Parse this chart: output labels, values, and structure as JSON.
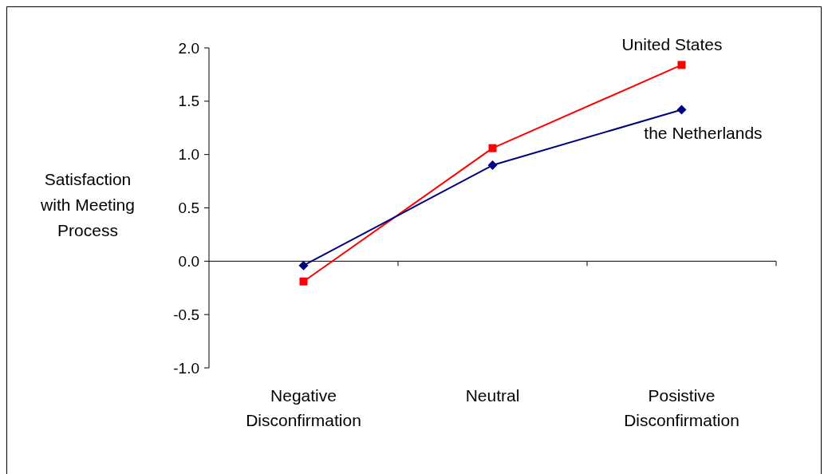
{
  "chart_data": {
    "type": "line",
    "ylabel": "Satisfaction with Meeting Process",
    "categories": [
      "Negative Disconfirmation",
      "Neutral",
      "Posistive Disconfirmation"
    ],
    "series": [
      {
        "name": "United States",
        "color": "#ff0000",
        "marker": "square",
        "values": [
          -0.19,
          1.06,
          1.84
        ]
      },
      {
        "name": "the Netherlands",
        "color": "#000080",
        "marker": "diamond",
        "values": [
          -0.04,
          0.9,
          1.42
        ]
      }
    ],
    "ylim": [
      -1.0,
      2.0
    ],
    "yticks": [
      {
        "value": -1,
        "label": "-1.0"
      },
      {
        "value": -0.5,
        "label": "-0.5"
      },
      {
        "value": 0,
        "label": "0.0"
      },
      {
        "value": 0.5,
        "label": "0.5"
      },
      {
        "value": 1,
        "label": "1.0"
      },
      {
        "value": 1.5,
        "label": "1.5"
      },
      {
        "value": 2,
        "label": "2.0"
      }
    ]
  }
}
